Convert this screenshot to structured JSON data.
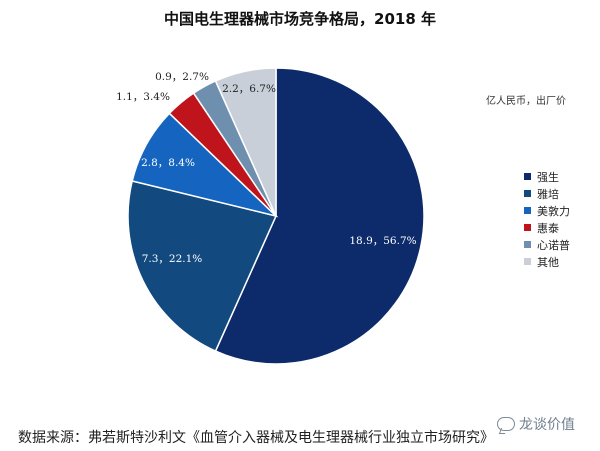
{
  "title": "中国电生理器械市场竞争格局，2018 年",
  "unit_note": "亿人民币，出厂价",
  "source_note": "数据来源：弗若斯特沙利文《血管介入器械及电生理器械行业独立市场研究》",
  "watermark": "龙谈价值",
  "colors": {
    "强生": "#0d2a6b",
    "雅培": "#12497f",
    "美敦力": "#1565c0",
    "惠泰": "#c0141c",
    "心诺普": "#6f8fae",
    "其他": "#c8cfd8"
  },
  "chart_data": {
    "type": "pie",
    "title": "中国电生理器械市场竞争格局，2018 年",
    "unit": "亿人民币，出厂价",
    "legend_position": "right",
    "slices": [
      {
        "name": "强生",
        "value": 18.9,
        "percent": 56.7,
        "label": "18.9，56.7%"
      },
      {
        "name": "雅培",
        "value": 7.3,
        "percent": 22.1,
        "label": "7.3，22.1%"
      },
      {
        "name": "美敦力",
        "value": 2.8,
        "percent": 8.4,
        "label": "2.8，8.4%"
      },
      {
        "name": "惠泰",
        "value": 1.1,
        "percent": 3.4,
        "label": "1.1，3.4%"
      },
      {
        "name": "心诺普",
        "value": 0.9,
        "percent": 2.7,
        "label": "0.9，2.7%"
      },
      {
        "name": "其他",
        "value": 2.2,
        "percent": 6.7,
        "label": "2.2，6.7%"
      }
    ]
  }
}
